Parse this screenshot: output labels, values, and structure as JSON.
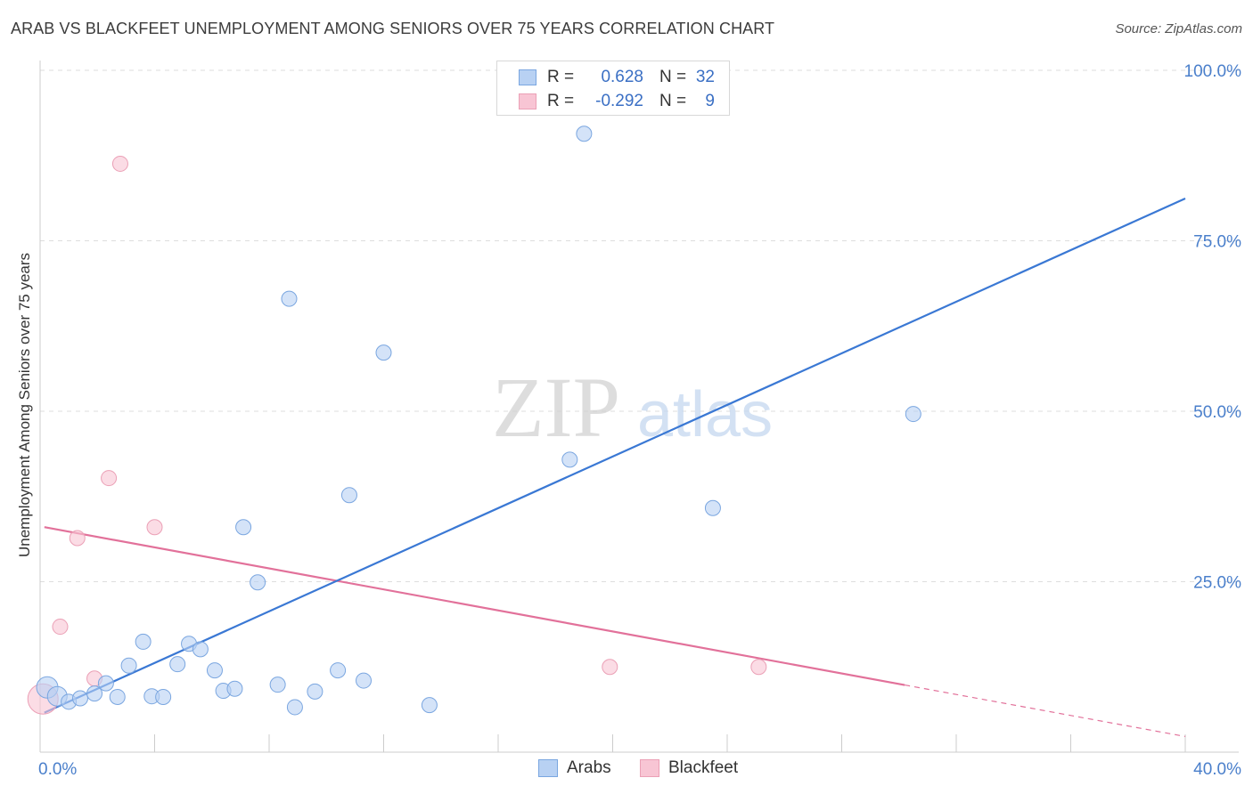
{
  "header": {
    "title": "ARAB VS BLACKFEET UNEMPLOYMENT AMONG SENIORS OVER 75 YEARS CORRELATION CHART",
    "source": "Source: ZipAtlas.com"
  },
  "legend_top": [
    {
      "r_label": "R =",
      "r_value": "0.628",
      "n_label": "N =",
      "n_value": "32"
    },
    {
      "r_label": "R =",
      "r_value": "-0.292",
      "n_label": "N =",
      "n_value": "9"
    }
  ],
  "legend_bottom": {
    "arabs": "Arabs",
    "blackfeet": "Blackfeet"
  },
  "watermark": {
    "zip": "ZIP",
    "atlas": "atlas"
  },
  "colors": {
    "arabs_fill": "#b8d1f3",
    "arabs_stroke": "#7aa6e0",
    "arabs_line": "#3a78d4",
    "blackfeet_fill": "#f8c5d4",
    "blackfeet_stroke": "#eba0b6",
    "blackfeet_line": "#e2719a",
    "tick_text": "#4a7fcb",
    "grid": "#dddddd"
  },
  "chart_data": {
    "type": "scatter",
    "title": "ARAB VS BLACKFEET UNEMPLOYMENT AMONG SENIORS OVER 75 YEARS CORRELATION CHART",
    "xlabel": "",
    "ylabel": "Unemployment Among Seniors over 75 years",
    "xlim": [
      0,
      40
    ],
    "ylim": [
      0,
      100
    ],
    "x_tick_labels": [
      "0.0%",
      "40.0%"
    ],
    "y_ticks": [
      25,
      50,
      75,
      100
    ],
    "y_tick_labels": [
      "25.0%",
      "50.0%",
      "75.0%",
      "100.0%"
    ],
    "legend_position": "top-center",
    "series": [
      {
        "name": "Arabs",
        "points": [
          [
            0.25,
            9.5
          ],
          [
            0.6,
            8.2
          ],
          [
            1.0,
            7.4
          ],
          [
            1.4,
            7.9
          ],
          [
            1.9,
            8.6
          ],
          [
            2.3,
            10.1
          ],
          [
            2.7,
            8.1
          ],
          [
            3.1,
            12.7
          ],
          [
            3.6,
            16.2
          ],
          [
            3.9,
            8.2
          ],
          [
            4.3,
            8.1
          ],
          [
            4.8,
            12.9
          ],
          [
            5.2,
            15.9
          ],
          [
            5.6,
            15.1
          ],
          [
            6.1,
            12.0
          ],
          [
            6.4,
            9.0
          ],
          [
            6.8,
            9.3
          ],
          [
            7.1,
            33.0
          ],
          [
            7.6,
            24.9
          ],
          [
            8.3,
            9.9
          ],
          [
            8.7,
            66.5
          ],
          [
            8.9,
            6.6
          ],
          [
            9.6,
            8.9
          ],
          [
            10.4,
            12.0
          ],
          [
            10.8,
            37.7
          ],
          [
            11.3,
            10.5
          ],
          [
            12.0,
            58.6
          ],
          [
            13.6,
            6.9
          ],
          [
            18.5,
            42.9
          ],
          [
            19.0,
            90.7
          ],
          [
            23.5,
            35.8
          ],
          [
            30.5,
            49.6
          ]
        ],
        "trend": {
          "x": [
            0.15,
            40
          ],
          "y": [
            5.8,
            81.2
          ]
        }
      },
      {
        "name": "Blackfeet",
        "points": [
          [
            0.1,
            7.8
          ],
          [
            0.7,
            18.4
          ],
          [
            1.3,
            31.4
          ],
          [
            1.9,
            10.8
          ],
          [
            2.4,
            40.2
          ],
          [
            2.8,
            86.3
          ],
          [
            4.0,
            33.0
          ],
          [
            19.9,
            12.5
          ],
          [
            25.1,
            12.5
          ]
        ],
        "trend": {
          "x": [
            0.15,
            40
          ],
          "y": [
            33.0,
            2.3
          ],
          "solid_until_x": 30.2
        }
      }
    ]
  }
}
